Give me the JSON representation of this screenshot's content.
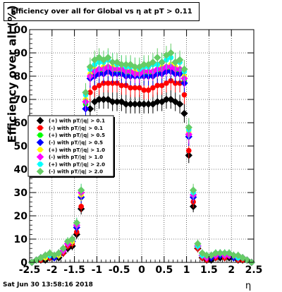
{
  "chart_data": {
    "type": "scatter",
    "title": "Efficiency over all for Global vs   η at pT > 0.11",
    "xlabel": "η",
    "ylabel": "Efficiency over all (%)",
    "xlim": [
      -2.5,
      2.5
    ],
    "ylim": [
      0,
      100
    ],
    "x_ticks": [
      "-2.5",
      "-2",
      "-1.5",
      "-1",
      "-0.5",
      "0",
      "0.5",
      "1",
      "1.5",
      "2",
      "2.5"
    ],
    "y_ticks": [
      "0",
      "10",
      "20",
      "30",
      "40",
      "50",
      "60",
      "70",
      "80",
      "90",
      "100"
    ],
    "grid": true,
    "legend_position": "left-middle",
    "x": [
      -2.45,
      -2.35,
      -2.25,
      -2.15,
      -2.05,
      -1.95,
      -1.85,
      -1.75,
      -1.65,
      -1.55,
      -1.45,
      -1.35,
      -1.25,
      -1.15,
      -1.05,
      -0.95,
      -0.85,
      -0.75,
      -0.65,
      -0.55,
      -0.45,
      -0.35,
      -0.25,
      -0.15,
      -0.05,
      0.05,
      0.15,
      0.25,
      0.35,
      0.45,
      0.55,
      0.65,
      0.75,
      0.85,
      0.95,
      1.05,
      1.15,
      1.25,
      1.35,
      1.45,
      1.55,
      1.65,
      1.75,
      1.85,
      1.95,
      2.05,
      2.15,
      2.25,
      2.35,
      2.45
    ],
    "series": [
      {
        "name": "(+) with pT/|q| > 0.1",
        "color": "#000000",
        "values": [
          0,
          1,
          1,
          1,
          2,
          2,
          2,
          4,
          6,
          7,
          12,
          23,
          53,
          66,
          69,
          70,
          70,
          70,
          69,
          69,
          69,
          68,
          68,
          68,
          68,
          68,
          68,
          68,
          69,
          69,
          70,
          70,
          69,
          68,
          64,
          46,
          24,
          6,
          2,
          1,
          1,
          2,
          2,
          2,
          2,
          2,
          1,
          1,
          1,
          0
        ]
      },
      {
        "name": "(-) with pT/|q| > 0.1",
        "color": "#ff0000",
        "values": [
          0,
          1,
          1,
          2,
          2,
          2,
          3,
          4,
          7,
          8,
          13,
          24,
          58,
          73,
          75,
          76,
          77,
          77,
          77,
          77,
          76,
          76,
          75,
          75,
          75,
          74,
          74,
          75,
          76,
          76,
          77,
          78,
          77,
          77,
          72,
          48,
          26,
          6,
          2,
          1,
          2,
          2,
          3,
          2,
          3,
          2,
          1,
          1,
          1,
          0
        ]
      },
      {
        "name": "(+) with pT/|q| > 0.5",
        "color": "#00ff00",
        "values": [
          0,
          1,
          2,
          2,
          3,
          2,
          3,
          5,
          8,
          9,
          15,
          28,
          68,
          80,
          81,
          82,
          82,
          83,
          82,
          82,
          82,
          81,
          81,
          81,
          81,
          81,
          81,
          81,
          82,
          82,
          83,
          83,
          82,
          82,
          78,
          55,
          28,
          7,
          3,
          2,
          2,
          3,
          3,
          3,
          3,
          2,
          2,
          2,
          1,
          0
        ]
      },
      {
        "name": "(-) with pT/|q| > 0.5",
        "color": "#0000ff",
        "values": [
          0,
          1,
          2,
          2,
          3,
          2,
          3,
          5,
          8,
          9,
          15,
          28,
          66,
          79,
          80,
          81,
          81,
          82,
          81,
          81,
          81,
          80,
          80,
          80,
          80,
          80,
          80,
          80,
          81,
          81,
          82,
          82,
          81,
          81,
          77,
          54,
          28,
          7,
          3,
          2,
          2,
          3,
          3,
          3,
          3,
          2,
          2,
          2,
          1,
          0
        ]
      },
      {
        "name": "(+) with pT/|q| > 1.0",
        "color": "#ffff00",
        "values": [
          0,
          1,
          2,
          2,
          3,
          3,
          3,
          5,
          8,
          9,
          16,
          29,
          70,
          81,
          83,
          83,
          84,
          84,
          84,
          83,
          83,
          83,
          82,
          82,
          82,
          82,
          82,
          82,
          83,
          84,
          84,
          85,
          84,
          83,
          80,
          56,
          29,
          7,
          3,
          2,
          3,
          3,
          4,
          3,
          3,
          3,
          2,
          2,
          1,
          0
        ]
      },
      {
        "name": "(-) with pT/|q| > 1.0",
        "color": "#ff00ff",
        "values": [
          0,
          1,
          2,
          3,
          3,
          3,
          4,
          5,
          8,
          10,
          16,
          30,
          69,
          80,
          82,
          83,
          83,
          84,
          83,
          83,
          83,
          82,
          82,
          81,
          81,
          82,
          82,
          82,
          83,
          83,
          84,
          84,
          83,
          83,
          79,
          55,
          29,
          7,
          3,
          2,
          3,
          3,
          4,
          3,
          3,
          3,
          2,
          2,
          1,
          0
        ]
      },
      {
        "name": "(+) with pT/|q| > 2.0",
        "color": "#00ffff",
        "values": [
          0,
          1,
          2,
          3,
          3,
          3,
          4,
          6,
          9,
          10,
          17,
          31,
          72,
          83,
          85,
          86,
          86,
          87,
          86,
          85,
          85,
          84,
          84,
          84,
          83,
          84,
          84,
          85,
          85,
          86,
          87,
          88,
          86,
          86,
          82,
          57,
          30,
          7,
          3,
          3,
          3,
          4,
          4,
          4,
          4,
          3,
          2,
          2,
          1,
          0
        ]
      },
      {
        "name": "(-) with pT/|q| > 2.0",
        "color": "#66cc66",
        "values": [
          0,
          1,
          2,
          3,
          4,
          3,
          4,
          6,
          9,
          10,
          17,
          31,
          73,
          84,
          87,
          88,
          87,
          88,
          86,
          86,
          85,
          85,
          85,
          84,
          84,
          85,
          85,
          86,
          88,
          86,
          89,
          90,
          86,
          87,
          83,
          58,
          31,
          8,
          4,
          3,
          3,
          4,
          4,
          4,
          4,
          3,
          3,
          2,
          1,
          0
        ]
      }
    ]
  },
  "footer": {
    "datestamp": "Sat Jun 30 13:58:16 2018"
  }
}
